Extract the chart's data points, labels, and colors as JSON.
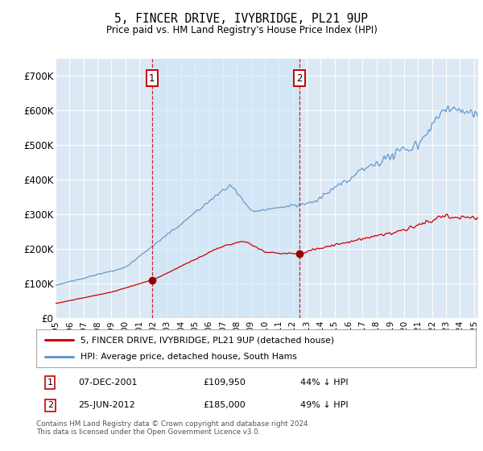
{
  "title": "5, FINCER DRIVE, IVYBRIDGE, PL21 9UP",
  "subtitle": "Price paid vs. HM Land Registry's House Price Index (HPI)",
  "legend_line1": "5, FINCER DRIVE, IVYBRIDGE, PL21 9UP (detached house)",
  "legend_line2": "HPI: Average price, detached house, South Hams",
  "footnote": "Contains HM Land Registry data © Crown copyright and database right 2024.\nThis data is licensed under the Open Government Licence v3.0.",
  "transaction1_date": "07-DEC-2001",
  "transaction1_price": "£109,950",
  "transaction1_hpi": "44% ↓ HPI",
  "transaction2_date": "25-JUN-2012",
  "transaction2_price": "£185,000",
  "transaction2_hpi": "49% ↓ HPI",
  "ylim": [
    0,
    750000
  ],
  "yticks": [
    0,
    100000,
    200000,
    300000,
    400000,
    500000,
    600000,
    700000
  ],
  "bg_color": "#dce9f5",
  "shade_color": "#cfe0f0",
  "red_line_color": "#cc0000",
  "blue_line_color": "#6699cc",
  "vline_color": "#cc0000",
  "transaction1_x": 2001.92,
  "transaction2_x": 2012.48,
  "transaction1_y": 109950,
  "transaction2_y": 185000,
  "marker_color": "#990000",
  "xmin": 1995.0,
  "xmax": 2025.3
}
